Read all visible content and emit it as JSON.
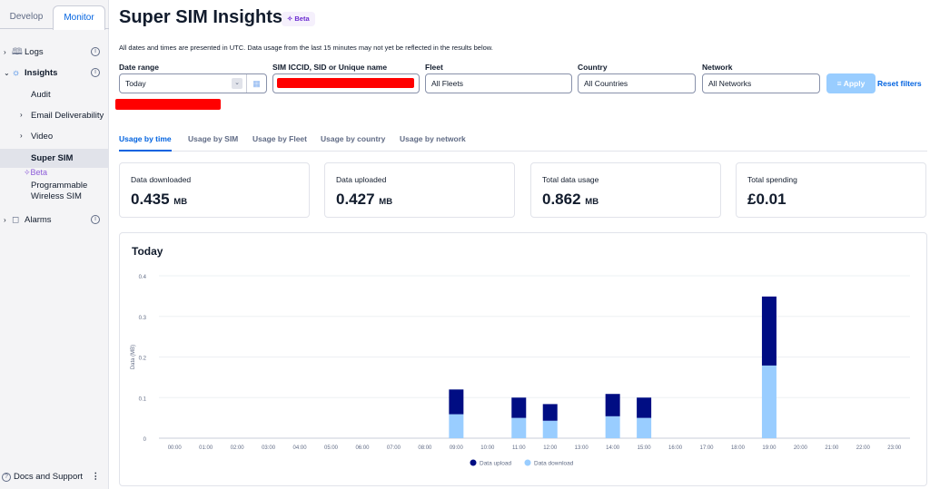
{
  "sidebar": {
    "tabs": [
      {
        "label": "Develop",
        "active": false
      },
      {
        "label": "Monitor",
        "active": true
      }
    ],
    "items": [
      {
        "label": "Logs",
        "icon": "book-icon",
        "expanded": false
      },
      {
        "label": "Insights",
        "icon": "lightbulb-icon",
        "expanded": true
      },
      {
        "label": "Alarms",
        "icon": "bell-icon",
        "expanded": false
      }
    ],
    "insights_children": [
      {
        "label": "Audit"
      },
      {
        "label": "Email Deliverability"
      },
      {
        "label": "Video"
      },
      {
        "label": "Super SIM",
        "active": true
      }
    ],
    "beta_label": "Beta",
    "pws_line1": "Programmable",
    "pws_line2": "Wireless SIM",
    "docs_label": "Docs and Support"
  },
  "header": {
    "title": "Super SIM Insights",
    "badge": "Beta",
    "note": "All dates and times are presented in UTC. Data usage from the last 15 minutes may not yet be reflected in the results below."
  },
  "filters": {
    "date_range": {
      "label": "Date range",
      "value": "Today"
    },
    "sim": {
      "label": "SIM ICCID, SID or Unique name",
      "value": "[redacted]"
    },
    "fleet": {
      "label": "Fleet",
      "value": "All Fleets"
    },
    "country": {
      "label": "Country",
      "value": "All Countries"
    },
    "network": {
      "label": "Network",
      "value": "All Networks"
    },
    "apply_label": "Apply",
    "reset_label": "Reset filters"
  },
  "tabs": [
    {
      "label": "Usage by time",
      "active": true
    },
    {
      "label": "Usage by SIM"
    },
    {
      "label": "Usage by Fleet"
    },
    {
      "label": "Usage by country"
    },
    {
      "label": "Usage by network"
    }
  ],
  "stats": [
    {
      "label": "Data downloaded",
      "value": "0.435",
      "unit": "MB"
    },
    {
      "label": "Data uploaded",
      "value": "0.427",
      "unit": "MB"
    },
    {
      "label": "Total data usage",
      "value": "0.862",
      "unit": "MB"
    },
    {
      "label": "Total spending",
      "value": "£0.01",
      "unit": ""
    }
  ],
  "colors": {
    "upload": "#000d83",
    "download": "#99cdff",
    "accent": "#0263e0"
  },
  "chart_data": {
    "type": "bar",
    "stacked": true,
    "title": "Today",
    "xlabel": "",
    "ylabel": "Data (MB)",
    "ylim": [
      0,
      0.4
    ],
    "yticks": [
      0,
      0.1,
      0.2,
      0.3,
      0.4
    ],
    "grid": true,
    "legend": "bottom-center",
    "categories": [
      "00:00",
      "01:00",
      "02:00",
      "03:00",
      "04:00",
      "05:00",
      "06:00",
      "07:00",
      "08:00",
      "09:00",
      "10:00",
      "11:00",
      "12:00",
      "13:00",
      "14:00",
      "15:00",
      "16:00",
      "17:00",
      "18:00",
      "19:00",
      "20:00",
      "21:00",
      "22:00",
      "23:00"
    ],
    "series": [
      {
        "name": "Data download",
        "values": [
          0,
          0,
          0,
          0,
          0,
          0,
          0,
          0,
          0,
          0.059,
          0,
          0.05,
          0.043,
          0,
          0.054,
          0.05,
          0,
          0,
          0,
          0.179,
          0,
          0,
          0,
          0
        ]
      },
      {
        "name": "Data upload",
        "values": [
          0,
          0,
          0,
          0,
          0,
          0,
          0,
          0,
          0,
          0.061,
          0,
          0.05,
          0.041,
          0,
          0.055,
          0.05,
          0,
          0,
          0,
          0.17,
          0,
          0,
          0,
          0
        ]
      }
    ],
    "legend_entries": [
      "Data upload",
      "Data download"
    ]
  }
}
